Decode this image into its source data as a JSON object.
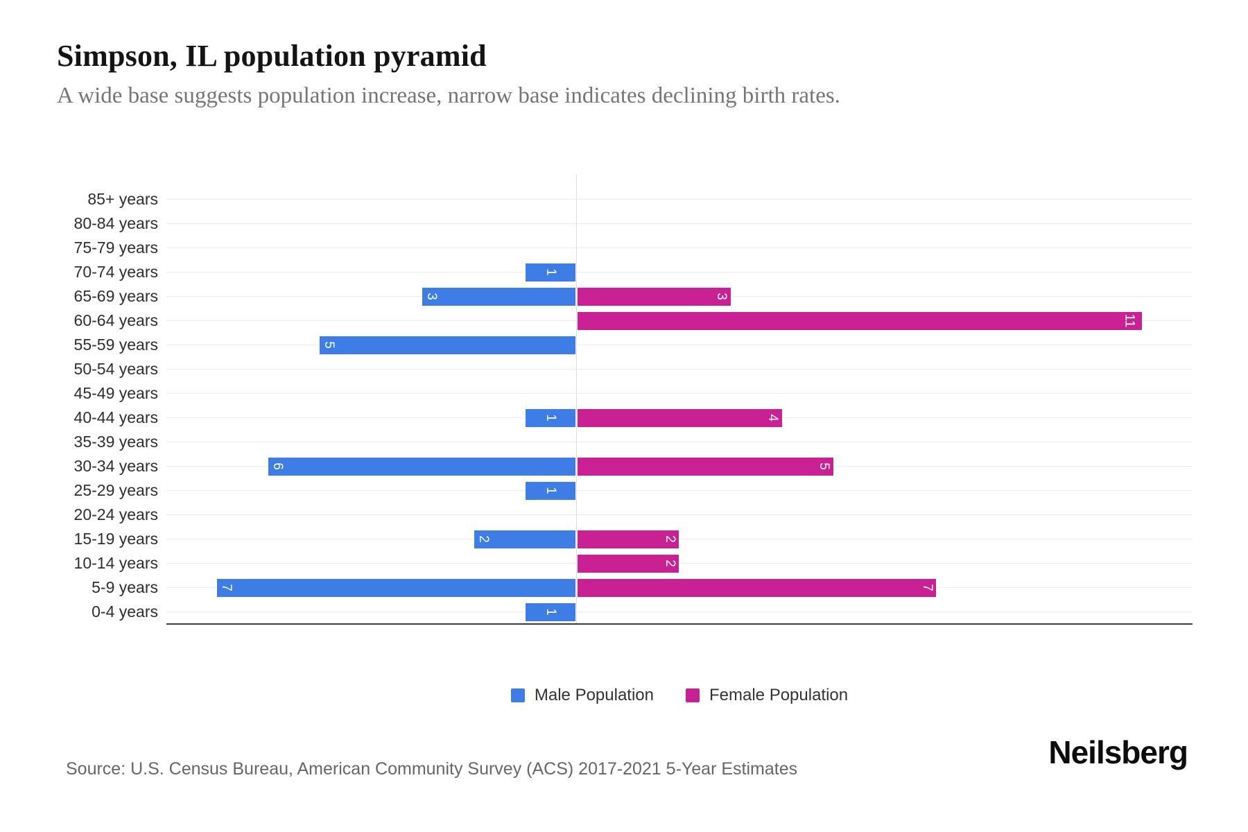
{
  "header": {
    "title": "Simpson, IL population pyramid",
    "subtitle": "A wide base suggests population increase, narrow base indicates declining birth rates."
  },
  "colors": {
    "male": "#3E7DE6",
    "female": "#C92193",
    "gridline": "#ececec",
    "axis_line": "#3a3a3a"
  },
  "legend": {
    "items": [
      {
        "label": "Male Population",
        "color": "#3E7DE6"
      },
      {
        "label": "Female Population",
        "color": "#C92193"
      }
    ]
  },
  "footer": {
    "source": "Source: U.S. Census Bureau, American Community Survey (ACS) 2017-2021 5-Year Estimates",
    "brand": "Neilsberg"
  },
  "chart_data": {
    "type": "bar",
    "variant": "population-pyramid",
    "orientation": "horizontal",
    "title": "Simpson, IL population pyramid",
    "categories": [
      "85+ years",
      "80-84 years",
      "75-79 years",
      "70-74 years",
      "65-69 years",
      "60-64 years",
      "55-59 years",
      "50-54 years",
      "45-49 years",
      "40-44 years",
      "35-39 years",
      "30-34 years",
      "25-29 years",
      "20-24 years",
      "15-19 years",
      "10-14 years",
      "5-9 years",
      "0-4 years"
    ],
    "series": [
      {
        "name": "Male Population",
        "side": "left",
        "color": "#3E7DE6",
        "values": [
          0,
          0,
          0,
          1,
          3,
          0,
          5,
          0,
          0,
          1,
          0,
          6,
          1,
          0,
          2,
          0,
          7,
          1
        ]
      },
      {
        "name": "Female Population",
        "side": "right",
        "color": "#C92193",
        "values": [
          0,
          0,
          0,
          0,
          3,
          11,
          0,
          0,
          0,
          4,
          0,
          5,
          0,
          0,
          2,
          2,
          7,
          0
        ]
      }
    ],
    "xlim_left": 8,
    "xlim_right": 12,
    "grid": "horizontal-per-category",
    "bar_value_labels": "inside, white, rotated 90deg",
    "legend_position": "bottom-center"
  }
}
